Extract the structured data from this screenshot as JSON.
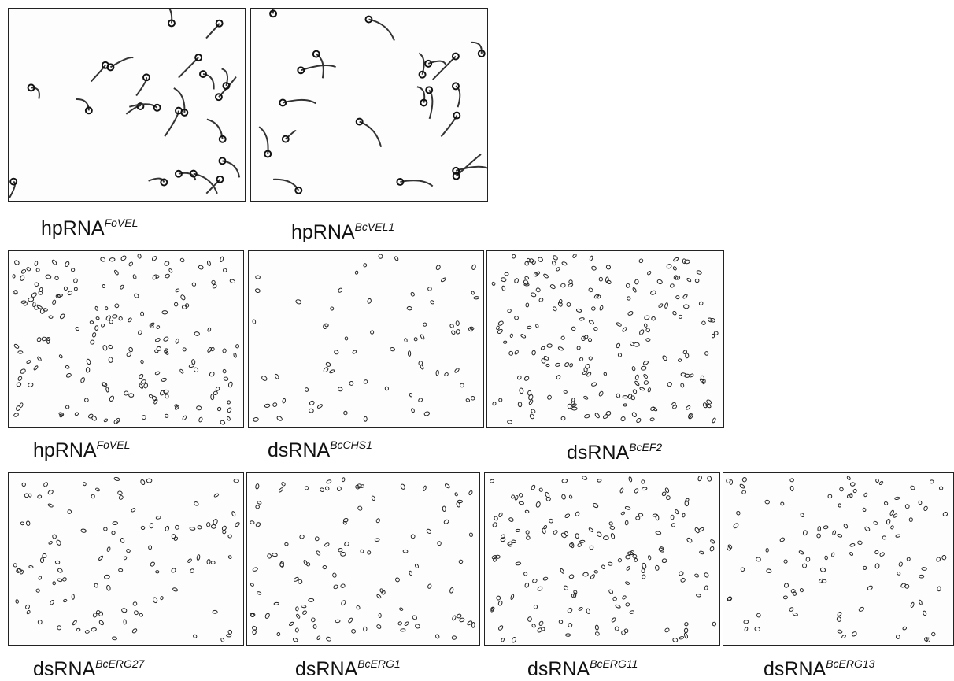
{
  "rows": [
    {
      "panels": [
        {
          "label": "hpRNA",
          "superscript": "FoVEL"
        },
        {
          "label": "hpRNA",
          "superscript": "BcVEL1"
        }
      ]
    },
    {
      "panels": [
        {
          "label": "hpRNA",
          "superscript": "FoVEL"
        },
        {
          "label": "dsRNA",
          "superscript": "BcCHS1"
        },
        {
          "label": "dsRNA",
          "superscript": "BcEF2"
        }
      ]
    },
    {
      "panels": [
        {
          "label": "dsRNA",
          "superscript": "BcERG27"
        },
        {
          "label": "dsRNA",
          "superscript": "BcERG1"
        },
        {
          "label": "dsRNA",
          "superscript": "BcERG11"
        },
        {
          "label": "dsRNA",
          "superscript": "BcERG13"
        }
      ]
    }
  ]
}
